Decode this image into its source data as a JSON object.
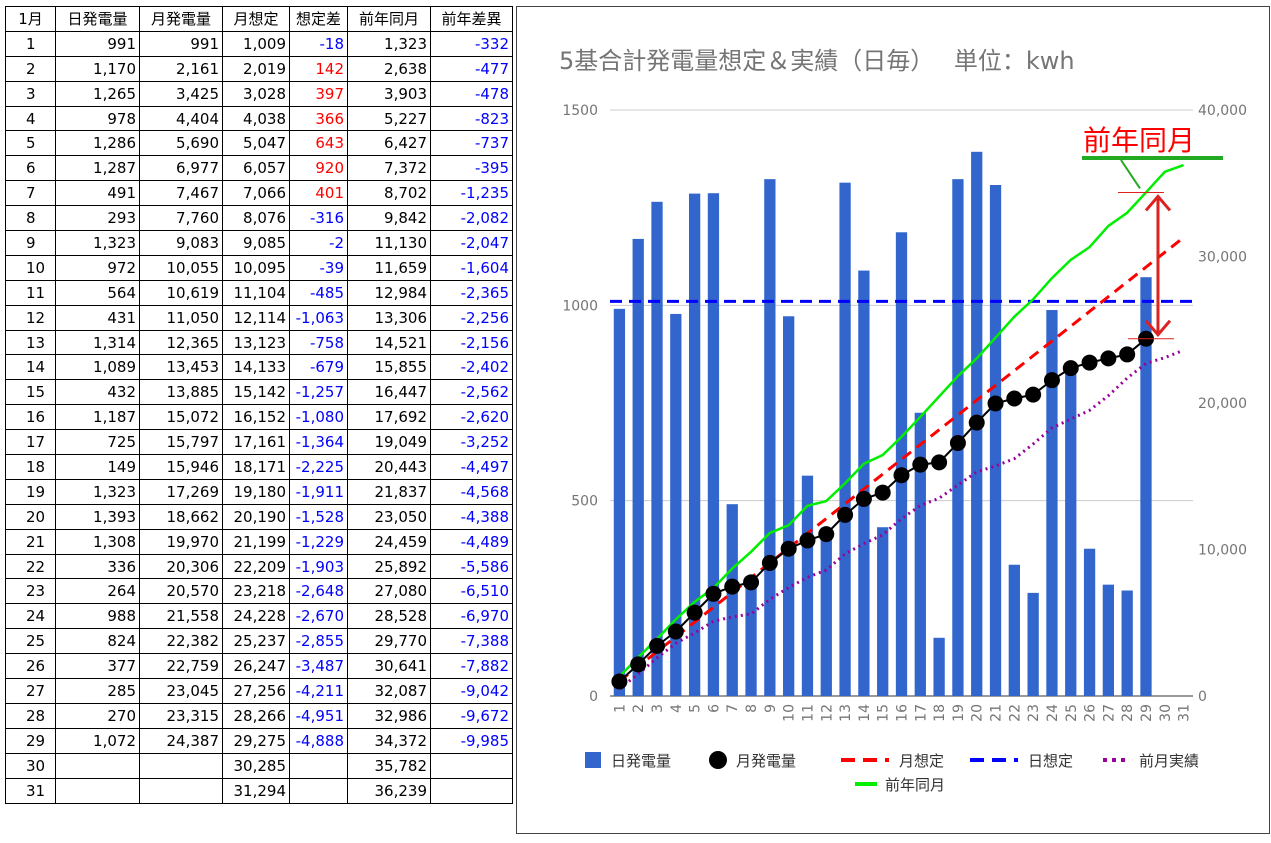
{
  "table": {
    "headers": [
      "1月",
      "日発電量",
      "月発電量",
      "月想定",
      "想定差",
      "前年同月",
      "前年差異"
    ],
    "rows": [
      [
        "1",
        "991",
        "991",
        "1,009",
        "-18",
        "1,323",
        "-332"
      ],
      [
        "2",
        "1,170",
        "2,161",
        "2,019",
        "142",
        "2,638",
        "-477"
      ],
      [
        "3",
        "1,265",
        "3,425",
        "3,028",
        "397",
        "3,903",
        "-478"
      ],
      [
        "4",
        "978",
        "4,404",
        "4,038",
        "366",
        "5,227",
        "-823"
      ],
      [
        "5",
        "1,286",
        "5,690",
        "5,047",
        "643",
        "6,427",
        "-737"
      ],
      [
        "6",
        "1,287",
        "6,977",
        "6,057",
        "920",
        "7,372",
        "-395"
      ],
      [
        "7",
        "491",
        "7,467",
        "7,066",
        "401",
        "8,702",
        "-1,235"
      ],
      [
        "8",
        "293",
        "7,760",
        "8,076",
        "-316",
        "9,842",
        "-2,082"
      ],
      [
        "9",
        "1,323",
        "9,083",
        "9,085",
        "-2",
        "11,130",
        "-2,047"
      ],
      [
        "10",
        "972",
        "10,055",
        "10,095",
        "-39",
        "11,659",
        "-1,604"
      ],
      [
        "11",
        "564",
        "10,619",
        "11,104",
        "-485",
        "12,984",
        "-2,365"
      ],
      [
        "12",
        "431",
        "11,050",
        "12,114",
        "-1,063",
        "13,306",
        "-2,256"
      ],
      [
        "13",
        "1,314",
        "12,365",
        "13,123",
        "-758",
        "14,521",
        "-2,156"
      ],
      [
        "14",
        "1,089",
        "13,453",
        "14,133",
        "-679",
        "15,855",
        "-2,402"
      ],
      [
        "15",
        "432",
        "13,885",
        "15,142",
        "-1,257",
        "16,447",
        "-2,562"
      ],
      [
        "16",
        "1,187",
        "15,072",
        "16,152",
        "-1,080",
        "17,692",
        "-2,620"
      ],
      [
        "17",
        "725",
        "15,797",
        "17,161",
        "-1,364",
        "19,049",
        "-3,252"
      ],
      [
        "18",
        "149",
        "15,946",
        "18,171",
        "-2,225",
        "20,443",
        "-4,497"
      ],
      [
        "19",
        "1,323",
        "17,269",
        "19,180",
        "-1,911",
        "21,837",
        "-4,568"
      ],
      [
        "20",
        "1,393",
        "18,662",
        "20,190",
        "-1,528",
        "23,050",
        "-4,388"
      ],
      [
        "21",
        "1,308",
        "19,970",
        "21,199",
        "-1,229",
        "24,459",
        "-4,489"
      ],
      [
        "22",
        "336",
        "20,306",
        "22,209",
        "-1,903",
        "25,892",
        "-5,586"
      ],
      [
        "23",
        "264",
        "20,570",
        "23,218",
        "-2,648",
        "27,080",
        "-6,510"
      ],
      [
        "24",
        "988",
        "21,558",
        "24,228",
        "-2,670",
        "28,528",
        "-6,970"
      ],
      [
        "25",
        "824",
        "22,382",
        "25,237",
        "-2,855",
        "29,770",
        "-7,388"
      ],
      [
        "26",
        "377",
        "22,759",
        "26,247",
        "-3,487",
        "30,641",
        "-7,882"
      ],
      [
        "27",
        "285",
        "23,045",
        "27,256",
        "-4,211",
        "32,087",
        "-9,042"
      ],
      [
        "28",
        "270",
        "23,315",
        "28,266",
        "-4,951",
        "32,986",
        "-9,672"
      ],
      [
        "29",
        "1,072",
        "24,387",
        "29,275",
        "-4,888",
        "34,372",
        "-9,985"
      ],
      [
        "30",
        "",
        "",
        "30,285",
        "",
        "35,782",
        ""
      ],
      [
        "31",
        "",
        "",
        "31,294",
        "",
        "36,239",
        ""
      ]
    ]
  },
  "chart_data": {
    "type": "bar",
    "title": "5基合計発電量想定＆実績（日毎）　 単位：kwh",
    "categories": [
      "1",
      "2",
      "3",
      "4",
      "5",
      "6",
      "7",
      "8",
      "9",
      "10",
      "11",
      "12",
      "13",
      "14",
      "15",
      "16",
      "17",
      "18",
      "19",
      "20",
      "21",
      "22",
      "23",
      "24",
      "25",
      "26",
      "27",
      "28",
      "29",
      "30",
      "31"
    ],
    "y_left": {
      "ticks": [
        "0",
        "500",
        "1000",
        "1500"
      ],
      "range": [
        0,
        1500
      ]
    },
    "y_right": {
      "ticks": [
        "0",
        "10,000",
        "20,000",
        "30,000",
        "40,000"
      ],
      "range": [
        0,
        40000
      ]
    },
    "series": [
      {
        "name": "日発電量",
        "type": "bar",
        "axis": "left",
        "color": "#3366cc",
        "values": [
          991,
          1170,
          1265,
          978,
          1286,
          1287,
          491,
          293,
          1323,
          972,
          564,
          431,
          1314,
          1089,
          432,
          1187,
          725,
          149,
          1323,
          1393,
          1308,
          336,
          264,
          988,
          824,
          377,
          285,
          270,
          1072,
          null,
          null
        ]
      },
      {
        "name": "月発電量",
        "type": "line-marker",
        "axis": "right",
        "color": "#000000",
        "values": [
          991,
          2161,
          3425,
          4404,
          5690,
          6977,
          7467,
          7760,
          9083,
          10055,
          10619,
          11050,
          12365,
          13453,
          13885,
          15072,
          15797,
          15946,
          17269,
          18662,
          19970,
          20306,
          20570,
          21558,
          22382,
          22759,
          23045,
          23315,
          24387,
          null,
          null
        ]
      },
      {
        "name": "月想定",
        "type": "dashed-line",
        "axis": "right",
        "color": "#ff0000",
        "values": [
          1009,
          2019,
          3028,
          4038,
          5047,
          6057,
          7066,
          8076,
          9085,
          10095,
          11104,
          12114,
          13123,
          14133,
          15142,
          16152,
          17161,
          18171,
          19180,
          20190,
          21199,
          22209,
          23218,
          24228,
          25237,
          26247,
          27256,
          28266,
          29275,
          30285,
          31294
        ]
      },
      {
        "name": "日想定",
        "type": "dashed-line",
        "axis": "left",
        "color": "#0000ff",
        "values": [
          1010,
          1010,
          1010,
          1010,
          1010,
          1010,
          1010,
          1010,
          1010,
          1010,
          1010,
          1010,
          1010,
          1010,
          1010,
          1010,
          1010,
          1010,
          1010,
          1010,
          1010,
          1010,
          1010,
          1010,
          1010,
          1010,
          1010,
          1010,
          1010,
          1010,
          1010
        ]
      },
      {
        "name": "前月実績",
        "type": "dotted-line",
        "axis": "right",
        "color": "#990099",
        "values": [
          500,
          1500,
          2600,
          3600,
          4300,
          5100,
          5400,
          5600,
          6600,
          7400,
          8100,
          8600,
          9700,
          10400,
          11000,
          12100,
          13000,
          13500,
          14400,
          15300,
          15700,
          16200,
          17200,
          18300,
          18900,
          19500,
          20500,
          21700,
          22700,
          23100,
          23600
        ]
      },
      {
        "name": "前年同月",
        "type": "line",
        "axis": "right",
        "color": "#00ee00",
        "values": [
          1323,
          2638,
          3903,
          5227,
          6427,
          7372,
          8702,
          9842,
          11130,
          11659,
          12984,
          13306,
          14521,
          15855,
          16447,
          17692,
          19049,
          20443,
          21837,
          23050,
          24459,
          25892,
          27080,
          28528,
          29770,
          30641,
          32087,
          32986,
          34372,
          35782,
          36239
        ]
      }
    ],
    "annotation": {
      "text": "前年同月",
      "color": "#ff0000"
    },
    "legend_placement": "bottom"
  },
  "colors": {
    "positive": "#ff0000",
    "negative": "#0000ff",
    "annotation_line": "#22aa22",
    "arrow": "#dd2222"
  }
}
